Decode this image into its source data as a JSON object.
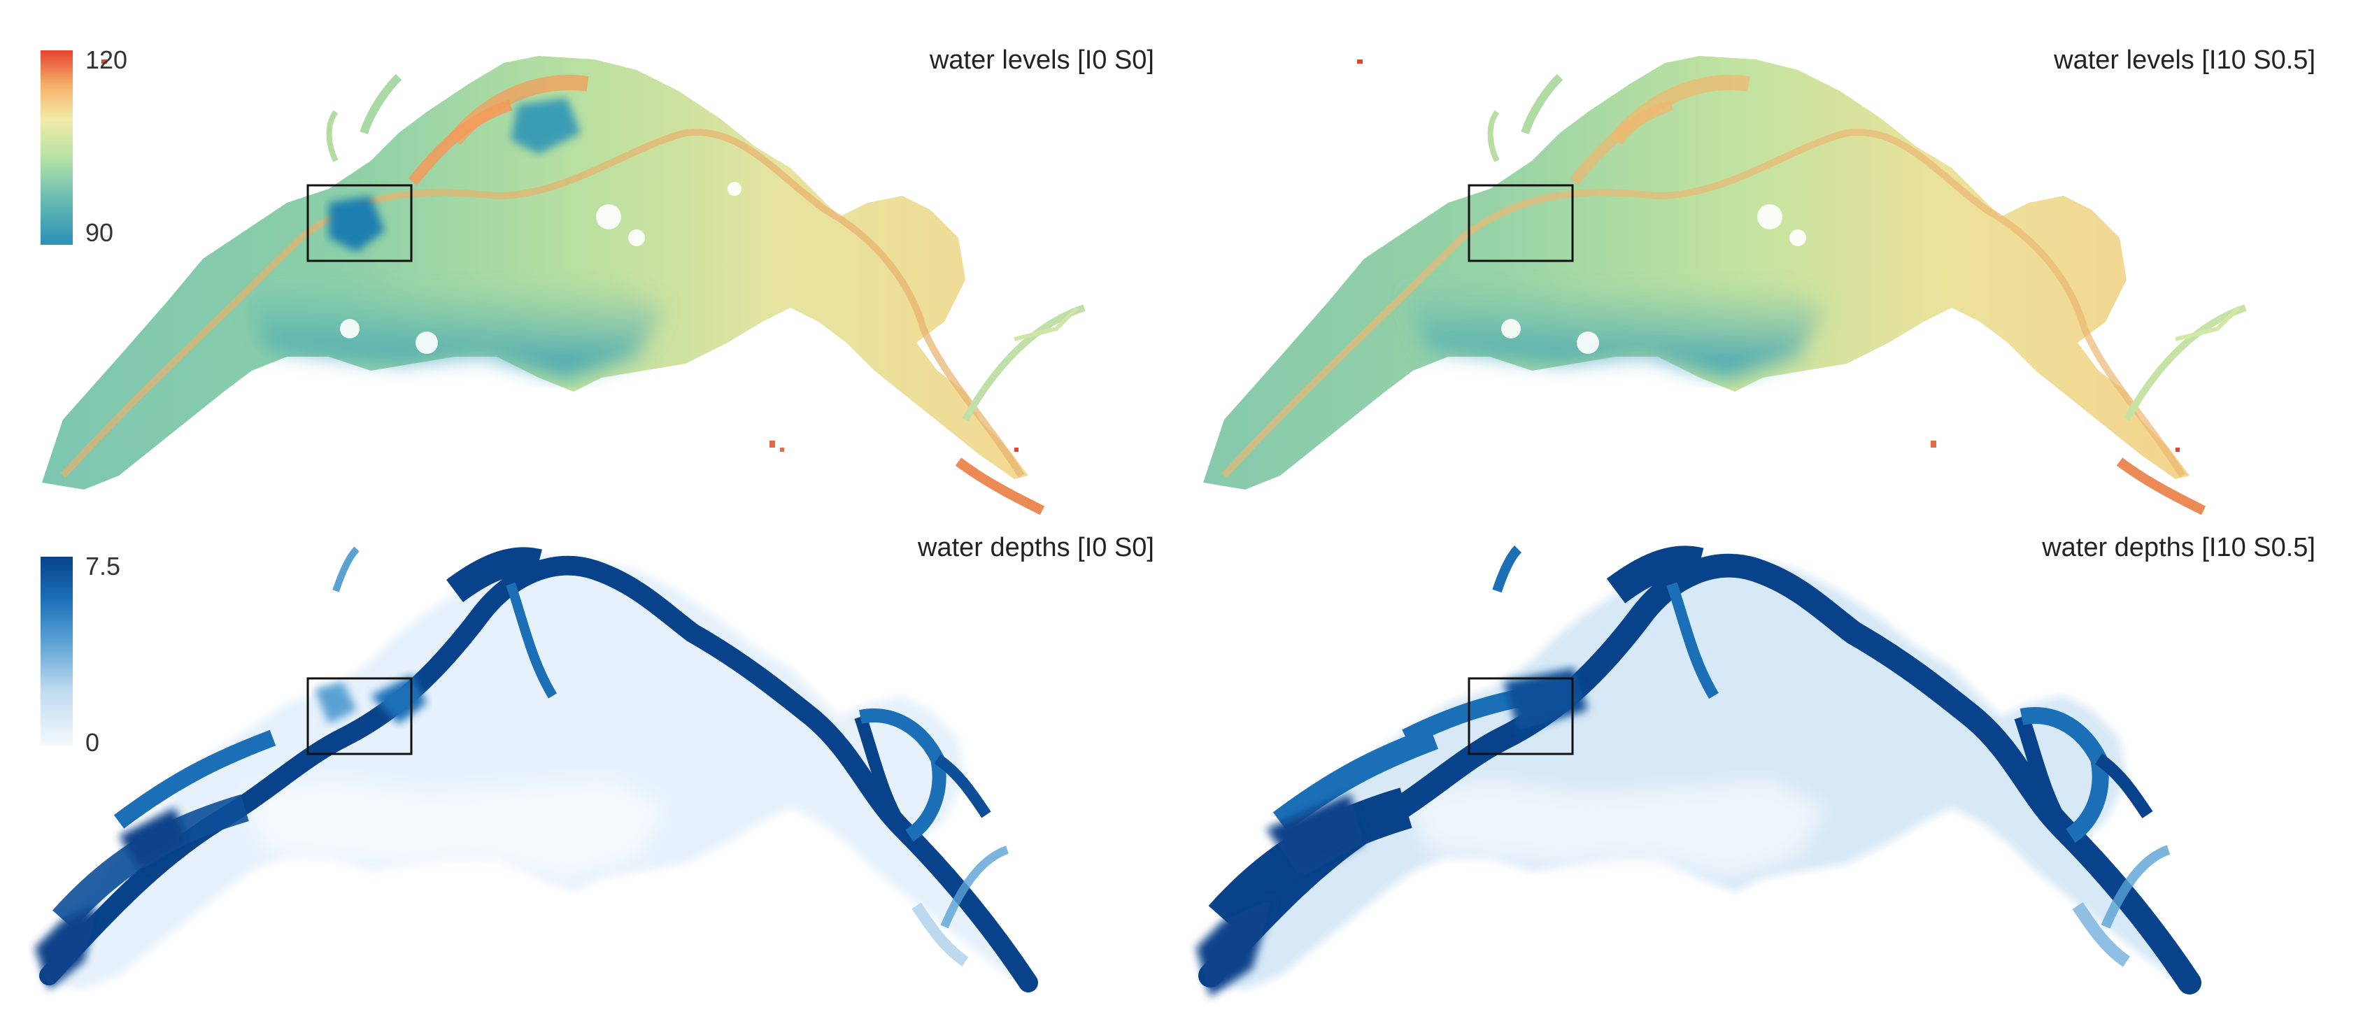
{
  "panels": [
    {
      "id": "levels-I0",
      "title": "water levels [I0 S0]",
      "variable": "levels"
    },
    {
      "id": "levels-I10",
      "title": "water levels [I10 S0.5]",
      "variable": "levels"
    },
    {
      "id": "depths-I0",
      "title": "water depths [I0 S0]",
      "variable": "depths"
    },
    {
      "id": "depths-I10",
      "title": "water depths [I10 S0.5]",
      "variable": "depths"
    }
  ],
  "colorbars": {
    "levels": {
      "max_label": "120",
      "min_label": "90",
      "colors": [
        "#2a8fb8",
        "#6cc0b0",
        "#b7e2a6",
        "#f3eaa8",
        "#f6b06a",
        "#e4432f"
      ]
    },
    "depths": {
      "max_label": "7.5",
      "min_label": "0",
      "colors": [
        "#f4f9fe",
        "#bdd9ef",
        "#5aa2d4",
        "#1a6fb6",
        "#08428a"
      ]
    }
  },
  "styles": {
    "inset_box_color": "#111111",
    "deep_water_color": "#08428a",
    "low_level_color": "#2a8fb8",
    "high_level_color": "#e4432f"
  }
}
